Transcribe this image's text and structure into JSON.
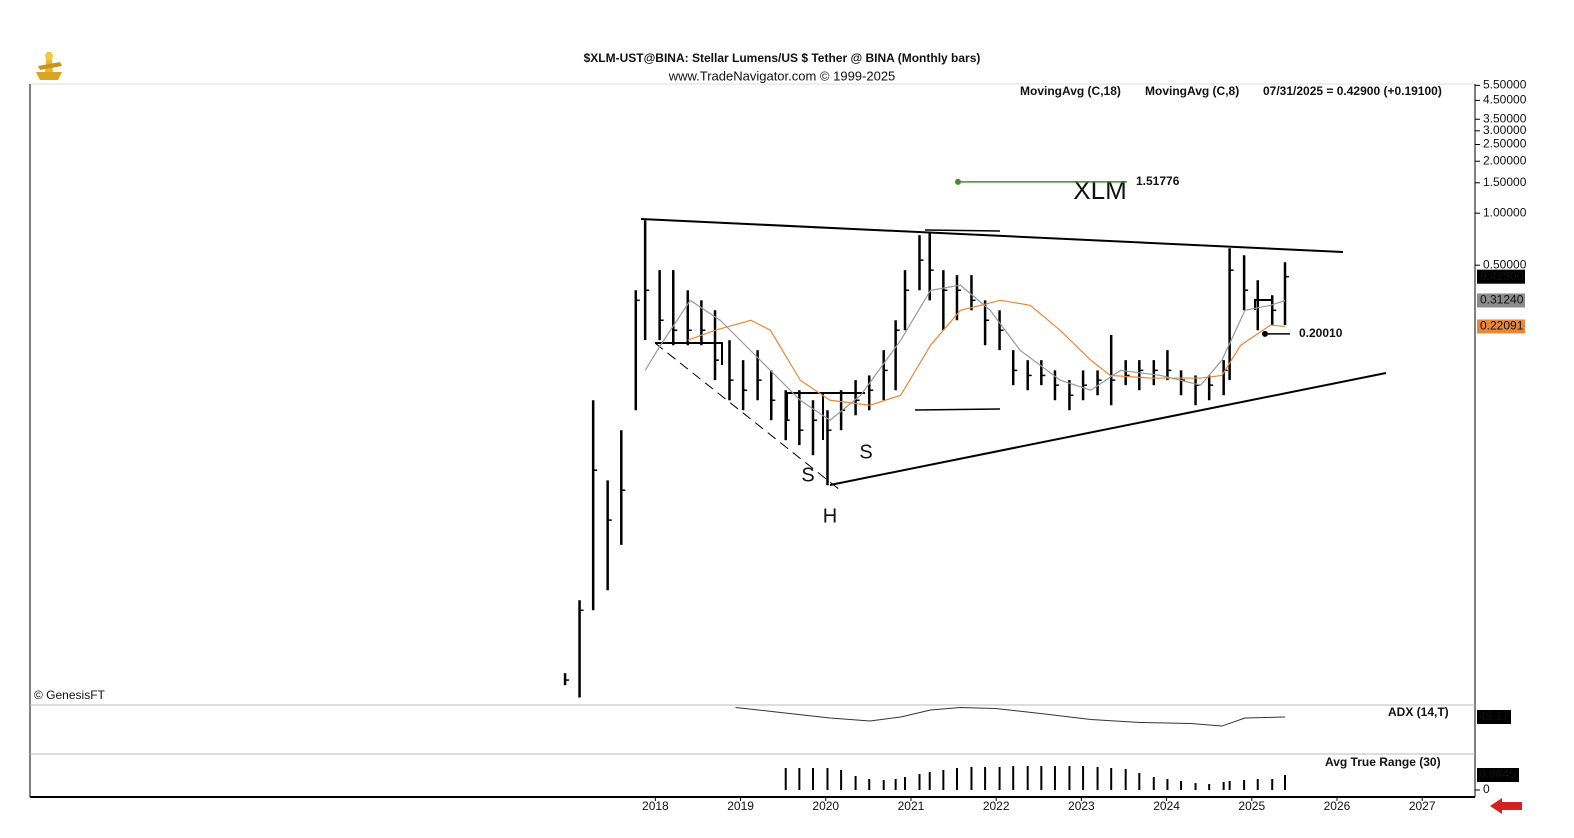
{
  "chart_data": [
    {
      "type": "ohlc",
      "title": "$XLM-UST@BINA:  Stellar Lumens/US $ Tether @ BINA  (Monthly bars)",
      "subtitle": "www.TradeNavigator.com © 1999-2025",
      "quote": "07/31/2025 = 0.42900 (+0.19100)",
      "credit": "© GenesisFT",
      "annotations": [
        "XLM",
        "S",
        "S",
        "H"
      ],
      "log_scale": true,
      "color": "#000000",
      "xlim": [
        2010.66,
        2027.62
      ],
      "ylim": [
        0.00142,
        5.6
      ],
      "yticks": [
        {
          "value": 5.5,
          "label": "5.50000"
        },
        {
          "value": 4.5,
          "label": "4.50000"
        },
        {
          "value": 3.5,
          "label": "3.50000"
        },
        {
          "value": 3,
          "label": "3.00000"
        },
        {
          "value": 2.5,
          "label": "2.50000"
        },
        {
          "value": 2,
          "label": "2.00000"
        },
        {
          "value": 1.5,
          "label": "1.50000"
        },
        {
          "value": 1,
          "label": "1.00000"
        },
        {
          "value": 0.5,
          "label": "0.50000"
        }
      ],
      "x": [
        2016.94,
        2017.11,
        2017.27,
        2017.44,
        2017.6,
        2017.77,
        2017.88,
        2018.05,
        2018.21,
        2018.38,
        2018.54,
        2018.7,
        2018.87,
        2019.03,
        2019.2,
        2019.36,
        2019.53,
        2019.69,
        2019.85,
        2020.02,
        2020.18,
        2020.35,
        2020.51,
        2020.68,
        2020.82,
        2020.93,
        2021.1,
        2021.22,
        2021.38,
        2021.54,
        2021.71,
        2021.87,
        2022.04,
        2022.2,
        2022.37,
        2022.53,
        2022.69,
        2022.86,
        2023.02,
        2023.19,
        2023.35,
        2023.52,
        2023.68,
        2023.85,
        2024.01,
        2024.17,
        2024.34,
        2024.5,
        2024.67,
        2024.74,
        2024.91,
        2025.07,
        2025.24,
        2025.39
      ],
      "high": [
        0.00217,
        0.00574,
        0.0826,
        0.0284,
        0.0554,
        0.358,
        0.911,
        0.468,
        0.468,
        0.358,
        0.313,
        0.274,
        0.184,
        0.141,
        0.161,
        0.123,
        0.0944,
        0.0944,
        0.0826,
        0.0723,
        0.0944,
        0.108,
        0.115,
        0.161,
        0.24,
        0.468,
        0.746,
        0.776,
        0.468,
        0.438,
        0.438,
        0.313,
        0.274,
        0.161,
        0.141,
        0.141,
        0.123,
        0.108,
        0.123,
        0.123,
        0.197,
        0.141,
        0.141,
        0.141,
        0.161,
        0.123,
        0.115,
        0.115,
        0.141,
        0.627,
        0.571,
        0.409,
        0.335,
        0.52
      ],
      "low": [
        0.00185,
        0.00157,
        0.00502,
        0.00656,
        0.012,
        0.0723,
        0.184,
        0.184,
        0.172,
        0.172,
        0.172,
        0.108,
        0.0826,
        0.0723,
        0.0826,
        0.0633,
        0.0485,
        0.0454,
        0.0397,
        0.0266,
        0.0554,
        0.0676,
        0.0723,
        0.0826,
        0.0944,
        0.21,
        0.358,
        0.313,
        0.21,
        0.24,
        0.274,
        0.172,
        0.161,
        0.101,
        0.0944,
        0.101,
        0.0826,
        0.0723,
        0.0826,
        0.0883,
        0.0773,
        0.101,
        0.0944,
        0.101,
        0.108,
        0.0883,
        0.0773,
        0.0826,
        0.0883,
        0.108,
        0.274,
        0.21,
        0.225,
        0.225
      ],
      "close": [
        0.00198,
        0.00502,
        0.0325,
        0.0167,
        0.0249,
        0.313,
        0.358,
        0.24,
        0.21,
        0.21,
        0.21,
        0.141,
        0.108,
        0.0944,
        0.108,
        0.0826,
        0.0633,
        0.0554,
        0.0633,
        0.0554,
        0.0723,
        0.0826,
        0.0944,
        0.123,
        0.21,
        0.358,
        0.535,
        0.468,
        0.358,
        0.358,
        0.313,
        0.24,
        0.21,
        0.123,
        0.115,
        0.115,
        0.101,
        0.0883,
        0.101,
        0.108,
        0.108,
        0.115,
        0.123,
        0.123,
        0.123,
        0.108,
        0.101,
        0.101,
        0.123,
        0.468,
        0.358,
        0.313,
        0.274,
        0.429
      ],
      "lines": [
        {
          "name": "MovingAvg (C,18)",
          "color": "#e8883a",
          "x": [
            2018.38,
            2018.7,
            2019.12,
            2019.35,
            2019.7,
            2020.05,
            2020.52,
            2020.88,
            2021.23,
            2021.58,
            2022.05,
            2022.4,
            2022.75,
            2023.11,
            2023.34,
            2023.81,
            2024.4,
            2024.65,
            2024.87,
            2025.22,
            2025.39
          ],
          "values": [
            0.184,
            0.21,
            0.24,
            0.21,
            0.108,
            0.0826,
            0.0773,
            0.0883,
            0.172,
            0.274,
            0.313,
            0.293,
            0.21,
            0.141,
            0.115,
            0.111,
            0.111,
            0.115,
            0.172,
            0.225,
            0.221
          ]
        },
        {
          "name": "MovingAvg (C,8)",
          "color": "#999999",
          "x": [
            2017.88,
            2018.06,
            2018.41,
            2018.76,
            2019.23,
            2019.7,
            2020.05,
            2020.41,
            2020.88,
            2021.23,
            2021.58,
            2021.93,
            2022.28,
            2022.75,
            2023.11,
            2023.46,
            2023.93,
            2024.4,
            2024.65,
            2024.92,
            2025.22,
            2025.39
          ],
          "values": [
            0.123,
            0.172,
            0.313,
            0.24,
            0.141,
            0.0826,
            0.0633,
            0.0883,
            0.184,
            0.358,
            0.383,
            0.274,
            0.161,
            0.108,
            0.0944,
            0.123,
            0.115,
            0.101,
            0.141,
            0.274,
            0.293,
            0.312
          ]
        }
      ],
      "price_boxes": [
        {
          "value": 0.429,
          "label": "0.42900",
          "color": "#000000"
        },
        {
          "value": 0.3124,
          "label": "0.31240",
          "color": "#8c8c8c"
        },
        {
          "value": 0.22091,
          "label": "0.22091",
          "color": "#e8883a"
        }
      ],
      "levels": [
        1.51776,
        {
          "value": 0.2001,
          "label": "0.20010"
        }
      ],
      "level_colors": [
        "#3f8f2f",
        "#000000"
      ]
    },
    {
      "type": "line",
      "title": "ADX (14,T)",
      "xlim": [
        2010.66,
        2027.62
      ],
      "ylim": [
        0,
        60
      ],
      "series": [
        {
          "name": "ADX",
          "color": "#333333",
          "x": [
            2018.94,
            2019.47,
            2020.05,
            2020.52,
            2020.88,
            2021.23,
            2021.58,
            2021.99,
            2022.52,
            2023.11,
            2023.69,
            2024.28,
            2024.65,
            2024.92,
            2025.39
          ],
          "values": [
            57.4,
            51,
            43.9,
            40,
            45.2,
            54.2,
            57.4,
            56.1,
            49.7,
            41.9,
            38.1,
            36.8,
            33.5,
            43.9,
            45.17
          ]
        }
      ]
    },
    {
      "type": "bar",
      "title": "Avg True Range (30)",
      "color": "#000000",
      "xlim": [
        2010.66,
        2027.62
      ],
      "ylim": [
        0,
        0.186
      ],
      "yticks": [
        0
      ],
      "xticks": [
        2018,
        2019,
        2020,
        2021,
        2022,
        2023,
        2024,
        2025,
        2026,
        2027
      ],
      "x": [
        2019.53,
        2019.69,
        2019.85,
        2020.02,
        2020.18,
        2020.35,
        2020.51,
        2020.68,
        2020.82,
        2020.93,
        2021.1,
        2021.22,
        2021.38,
        2021.54,
        2021.71,
        2021.87,
        2022.04,
        2022.2,
        2022.37,
        2022.53,
        2022.69,
        2022.86,
        2023.02,
        2023.19,
        2023.35,
        2023.52,
        2023.68,
        2023.85,
        2024.01,
        2024.17,
        2024.34,
        2024.5,
        2024.67,
        2024.74,
        2024.91,
        2025.07,
        2025.24,
        2025.39
      ],
      "values": [
        0.124,
        0.124,
        0.124,
        0.124,
        0.113,
        0.079,
        0.062,
        0.056,
        0.062,
        0.073,
        0.09,
        0.101,
        0.113,
        0.124,
        0.13,
        0.13,
        0.13,
        0.135,
        0.135,
        0.135,
        0.135,
        0.135,
        0.135,
        0.13,
        0.124,
        0.118,
        0.096,
        0.073,
        0.062,
        0.051,
        0.039,
        0.034,
        0.045,
        0.051,
        0.056,
        0.062,
        0.062,
        0.0845
      ]
    }
  ]
}
